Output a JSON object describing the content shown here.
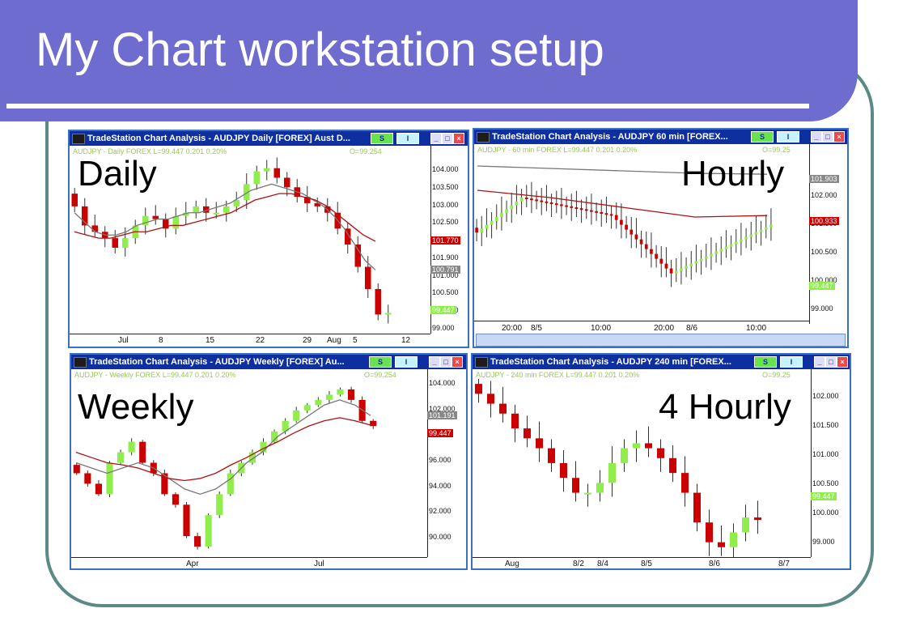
{
  "slide": {
    "title": "My Chart workstation setup"
  },
  "colors": {
    "up": "#90ee4c",
    "down": "#cc0000",
    "ma_fast": "#777777",
    "ma_slow": "#b01010",
    "header": "#6e6ccf",
    "title_bar": "#0e2f9f"
  },
  "panels": {
    "daily": {
      "window_title": "TradeStation Chart Analysis - AUDJPY  Daily  [FOREX] Aust D...",
      "btn_s": "S",
      "btn_i": "I",
      "info": "AUDJPY - Daily  FOREX  L=99.447  0.201  0.20%",
      "open_text": "O=99.254",
      "label": "Daily",
      "price_labels": [
        "104.000",
        "103.500",
        "103.000",
        "102.500",
        "102.000",
        "101.900",
        "101.000",
        "100.500",
        "100.000",
        "99.000"
      ],
      "price_tags": [
        "101.770",
        "100.791",
        "99.447"
      ],
      "date_labels": [
        "Jul",
        "8",
        "15",
        "22",
        "29",
        "Aug",
        "5",
        "12"
      ],
      "chart_data": {
        "type": "candlestick",
        "ylim": [
          98.8,
          104.4
        ],
        "close": [
          102.8,
          102.2,
          102,
          101.8,
          101.5,
          101.8,
          102.2,
          102.5,
          102.4,
          102.1,
          102.5,
          102.6,
          102.8,
          102.6,
          102.6,
          102.8,
          103,
          103.5,
          103.9,
          104,
          103.7,
          103.4,
          103.1,
          102.9,
          102.8,
          102.6,
          102.1,
          101.6,
          100.9,
          100.2,
          99.4,
          99.45
        ],
        "ma_fast": [
          102.6,
          102.3,
          102.0,
          101.9,
          101.9,
          102.0,
          102.2,
          102.3,
          102.4,
          102.4,
          102.5,
          102.6,
          102.6,
          102.7,
          102.8,
          102.9,
          103.1,
          103.3,
          103.4,
          103.5,
          103.4,
          103.3,
          103.2,
          103.0,
          102.8,
          102.5,
          102.1,
          101.6,
          101.1,
          100.8
        ],
        "ma_slow": [
          102.0,
          101.9,
          101.8,
          101.8,
          101.9,
          102.0,
          102.0,
          102.1,
          102.2,
          102.2,
          102.3,
          102.4,
          102.5,
          102.6,
          102.8,
          103.0,
          103.1,
          103.2,
          103.2,
          103.1,
          103.0,
          102.8,
          102.5,
          102.2,
          101.9,
          101.7
        ]
      }
    },
    "hourly": {
      "window_title": "TradeStation Chart Analysis - AUDJPY  60 min  [FOREX...",
      "btn_s": "S",
      "btn_i": "I",
      "info": "AUDJPY - 60 min  FOREX  L=99.447  0.201  0.20%",
      "open_text": "O=99.25",
      "label": "Hourly",
      "price_labels": [
        "102.000",
        "101.500",
        "100.500",
        "100.000",
        "99.000"
      ],
      "price_tags": [
        "101.903",
        "100.933",
        "99.447"
      ],
      "date_labels": [
        "20:00",
        "8/5",
        "10:00",
        "20:00",
        "8/6",
        "10:00"
      ],
      "chart_data": {
        "type": "candlestick",
        "ylim": [
          98.7,
          102.2
        ],
        "ma_fast": [
          101.95,
          101.9,
          101.85,
          101.8,
          101.78
        ],
        "ma_slow": [
          101.45,
          101.3,
          101.1,
          100.9,
          100.93
        ]
      }
    },
    "weekly": {
      "window_title": "TradeStation Chart Analysis - AUDJPY  Weekly  [FOREX] Au...",
      "btn_s": "S",
      "btn_i": "I",
      "info": "AUDJPY - Weekly  FOREX  L=99.447  0.201  0.20%",
      "open_text": "O=99.254",
      "label": "Weekly",
      "price_labels": [
        "104.000",
        "102.000",
        "98.000",
        "96.000",
        "94.000",
        "92.000",
        "90.000"
      ],
      "price_tags": [
        "101.191",
        "99.447"
      ],
      "date_labels": [
        "Apr",
        "Jul"
      ],
      "chart_data": {
        "type": "candlestick",
        "ylim": [
          88,
          105
        ]
      }
    },
    "fourhourly": {
      "window_title": "TradeStation Chart Analysis - AUDJPY  240 min  [FOREX...",
      "btn_s": "S",
      "btn_i": "I",
      "info": "AUDJPY - 240 min  FOREX  L=99.447  0.201  0.20%",
      "open_text": "O=99.25",
      "label": "4 Hourly",
      "price_labels": [
        "102.000",
        "101.500",
        "101.000",
        "100.500",
        "100.000",
        "99.000"
      ],
      "price_tags": [
        "99.447"
      ],
      "date_labels": [
        "Aug",
        "8/2",
        "8/4",
        "8/5",
        "8/6",
        "8/7"
      ],
      "chart_data": {
        "type": "candlestick",
        "ylim": [
          98.7,
          102.3
        ]
      }
    }
  }
}
